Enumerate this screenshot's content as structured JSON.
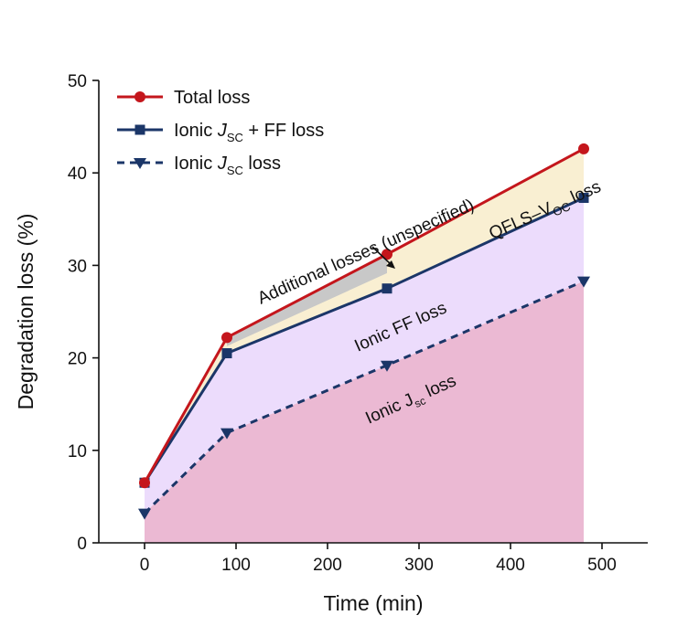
{
  "chart_data": {
    "type": "line",
    "xlabel": "Time (min)",
    "ylabel": "Degradation loss (%)",
    "xlim": [
      -50,
      550
    ],
    "ylim": [
      0,
      50
    ],
    "xticks": [
      "0",
      "100",
      "200",
      "300",
      "400",
      "500"
    ],
    "yticks": [
      "0",
      "10",
      "20",
      "30",
      "40",
      "50"
    ],
    "legend_position": "top-left",
    "grid": false,
    "series": [
      {
        "name": "Total loss",
        "marker": "circle",
        "line": "solid",
        "color": "#c4161c",
        "x": [
          0,
          90,
          265,
          480
        ],
        "y": [
          6.5,
          22.2,
          31.2,
          42.6
        ]
      },
      {
        "name": "Ionic J_SC + FF loss",
        "marker": "square",
        "line": "solid",
        "color": "#1b3668",
        "x": [
          0,
          90,
          265,
          480
        ],
        "y": [
          6.5,
          20.5,
          27.5,
          37.3
        ]
      },
      {
        "name": "Ionic J_SC loss",
        "marker": "triangle-down",
        "line": "dashed",
        "color": "#1b3668",
        "x": [
          0,
          90,
          265,
          480
        ],
        "y": [
          3.2,
          11.9,
          19.2,
          28.3
        ]
      }
    ],
    "legend": [
      {
        "text": "Total loss",
        "series": 0
      },
      {
        "base": "Ionic ",
        "italic": "J",
        "sub": "SC",
        "rest": " + FF loss",
        "series": 1
      },
      {
        "base": "Ionic ",
        "italic": "J",
        "sub": "SC",
        "rest": " loss",
        "series": 2
      }
    ],
    "regions": [
      {
        "name": "Ionic Jsc loss",
        "color": "#ebb9d3"
      },
      {
        "name": "Ionic FF loss",
        "color": "#ecdcfc"
      },
      {
        "name": "QFLS-VOC loss",
        "color": "#f9efd2"
      },
      {
        "name": "Additional losses (unspecified)",
        "color": "#c8c8c8"
      }
    ],
    "annotations": {
      "additional": "Additional losses (unspecified)",
      "qfls_base": "QFLS–V",
      "qfls_sub": "OC",
      "qfls_rest": " loss",
      "ff": "Ionic FF loss",
      "jsc_base": "Ionic J",
      "jsc_sub": "sc",
      "jsc_rest": " loss"
    }
  }
}
